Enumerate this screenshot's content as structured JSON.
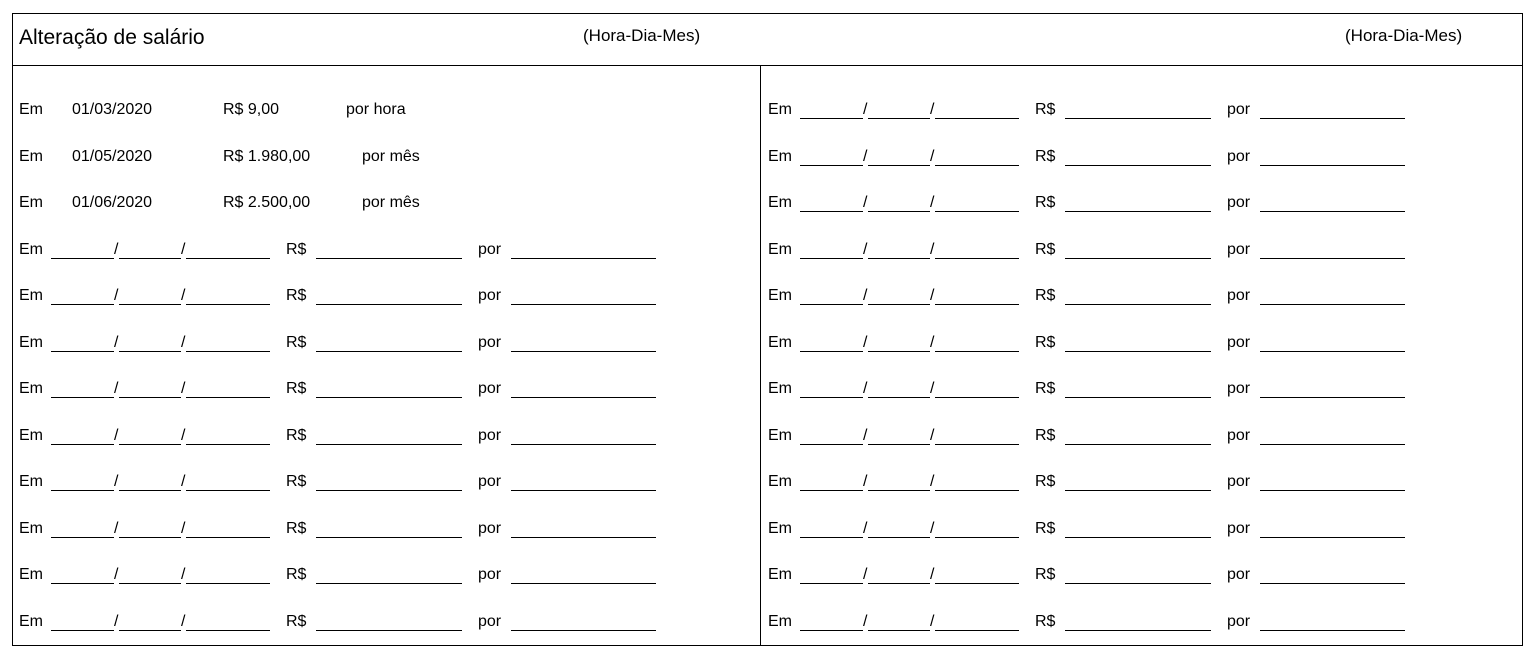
{
  "header": {
    "title": "Alteração de salário",
    "unit_hint_left": "(Hora-Dia-Mes)",
    "unit_hint_right": "(Hora-Dia-Mes)"
  },
  "labels": {
    "on": "Em",
    "currency": "R$",
    "per": "por",
    "date_sep": "/"
  },
  "left_column": {
    "filled_rows": [
      {
        "on": "Em",
        "date": "01/03/2020",
        "amount": "R$ 9,00",
        "per": "por hora"
      },
      {
        "on": "Em",
        "date": "01/05/2020",
        "amount": "R$ 1.980,00",
        "per": "por mês"
      },
      {
        "on": "Em",
        "date": "01/06/2020",
        "amount": "R$ 2.500,00",
        "per": "por mês"
      }
    ],
    "blank_row_count": 9
  },
  "right_column": {
    "blank_row_count": 12
  }
}
